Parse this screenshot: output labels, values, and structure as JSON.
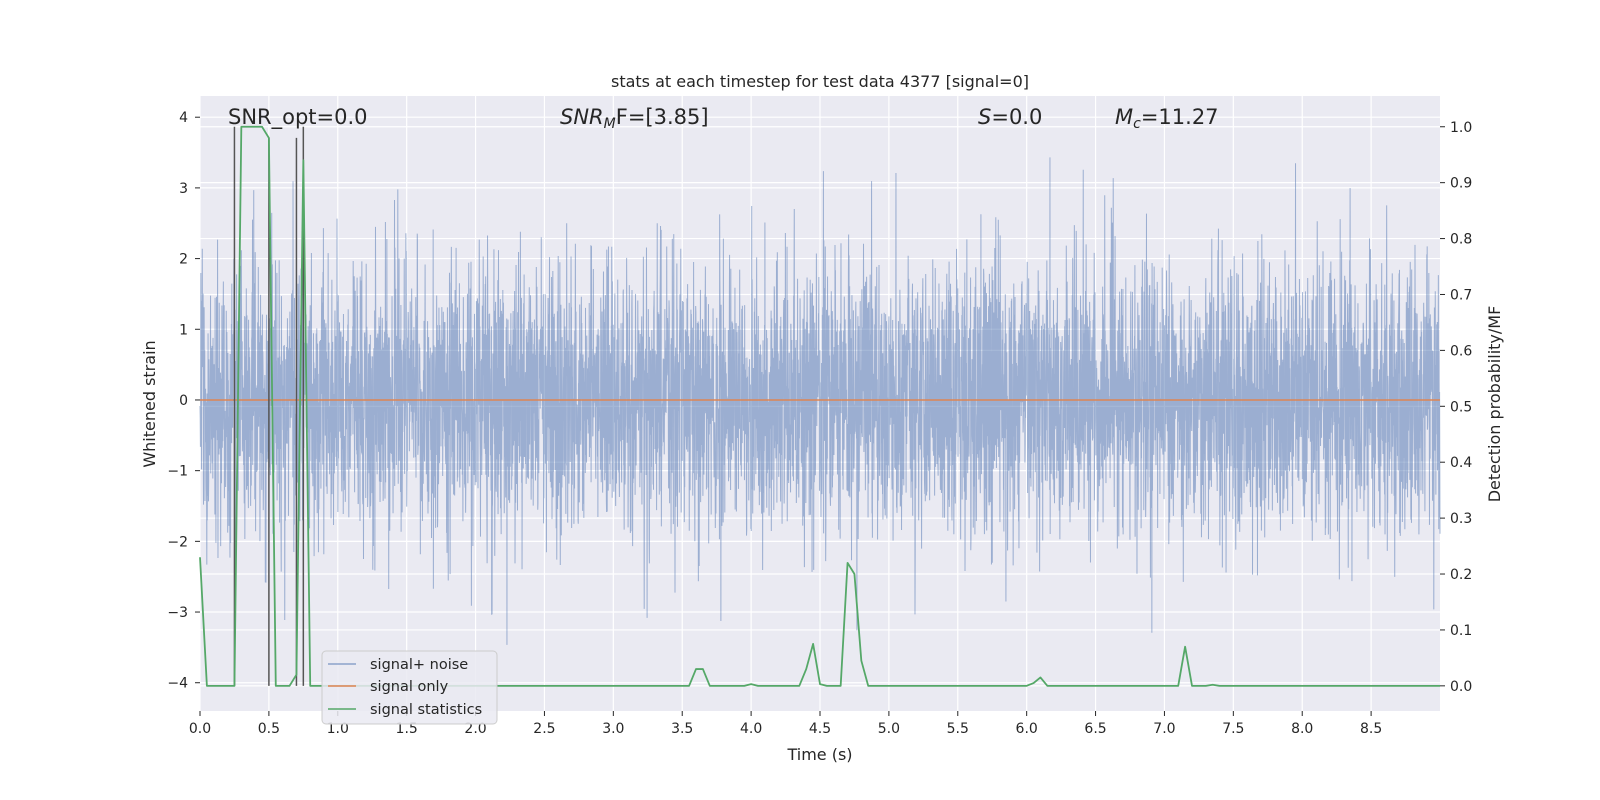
{
  "chart_data": {
    "type": "line",
    "title": "stats at each timestep for test data 4377 [signal=0]",
    "xlabel": "Time (s)",
    "ylabel": "Whitened strain",
    "ylabel_right": "Detection probability/MF",
    "xlim": [
      0.0,
      9.0
    ],
    "ylim": [
      -4.4,
      4.3
    ],
    "ylim_right": [
      -0.045,
      1.055
    ],
    "xticks": [
      0.0,
      0.5,
      1.0,
      1.5,
      2.0,
      2.5,
      3.0,
      3.5,
      4.0,
      4.5,
      5.0,
      5.5,
      6.0,
      6.5,
      7.0,
      7.5,
      8.0,
      8.5
    ],
    "xtick_labels": [
      "0.0",
      "0.5",
      "1.0",
      "1.5",
      "2.0",
      "2.5",
      "3.0",
      "3.5",
      "4.0",
      "4.5",
      "5.0",
      "5.5",
      "6.0",
      "6.5",
      "7.0",
      "7.5",
      "8.0",
      "8.5"
    ],
    "yticks": [
      -4,
      -3,
      -2,
      -1,
      0,
      1,
      2,
      3,
      4
    ],
    "ytick_labels": [
      "−4",
      "−3",
      "−2",
      "−1",
      "0",
      "1",
      "2",
      "3",
      "4"
    ],
    "yticks_right": [
      0.0,
      0.1,
      0.2,
      0.3,
      0.4,
      0.5,
      0.6,
      0.7,
      0.8,
      0.9,
      1.0
    ],
    "ytick_labels_right": [
      "0.0",
      "0.1",
      "0.2",
      "0.3",
      "0.4",
      "0.5",
      "0.6",
      "0.7",
      "0.8",
      "0.9",
      "1.0"
    ],
    "grid": true,
    "legend_position": "lower-left",
    "annotations": {
      "snr_opt": "SNR_opt=0.0",
      "snr_mf_sym": "SNR",
      "snr_mf_sub": "M",
      "snr_mf_rest": "F=[3.85]",
      "s_sym": "S",
      "s_rest": "=0.0",
      "mc_sym": "M",
      "mc_sub": "c",
      "mc_rest": "=11.27"
    },
    "series": [
      {
        "name": "signal+ noise",
        "color": "#4c72b0",
        "opacity": 0.5,
        "description": "whitened noise, dense trace approx. within [-2.5, 2.5] with spikes up to about 3.5 and down to about -4.0"
      },
      {
        "name": "signal only",
        "color": "#dd8452",
        "values_constant": 0.0
      },
      {
        "name": "signal statistics",
        "color": "#55a868",
        "axis": "right",
        "x": [
          0.0,
          0.05,
          0.1,
          0.15,
          0.2,
          0.25,
          0.3,
          0.35,
          0.4,
          0.45,
          0.5,
          0.55,
          0.6,
          0.65,
          0.7,
          0.75,
          0.8,
          0.85,
          0.9,
          0.95,
          1.0,
          1.5,
          2.0,
          2.5,
          3.0,
          3.5,
          3.55,
          3.6,
          3.65,
          3.7,
          3.75,
          3.8,
          3.85,
          3.9,
          3.95,
          4.0,
          4.05,
          4.1,
          4.15,
          4.2,
          4.25,
          4.3,
          4.35,
          4.4,
          4.45,
          4.5,
          4.55,
          4.6,
          4.65,
          4.7,
          4.75,
          4.8,
          4.85,
          4.9,
          4.95,
          5.0,
          5.5,
          5.95,
          6.0,
          6.05,
          6.1,
          6.15,
          6.2,
          6.5,
          7.0,
          7.05,
          7.1,
          7.15,
          7.2,
          7.25,
          7.3,
          7.35,
          7.4,
          7.45,
          7.5,
          8.0,
          8.5,
          9.0
        ],
        "values": [
          0.23,
          0.0,
          0.0,
          0.0,
          0.0,
          0.0,
          1.0,
          1.0,
          1.0,
          1.0,
          0.98,
          0.0,
          0.0,
          0.0,
          0.02,
          0.94,
          0.0,
          0.0,
          0.0,
          0.0,
          0.0,
          0.0,
          0.0,
          0.0,
          0.0,
          0.0,
          0.0,
          0.03,
          0.03,
          0.0,
          0.0,
          0.0,
          0.0,
          0.0,
          0.0,
          0.003,
          0.0,
          0.0,
          0.0,
          0.0,
          0.0,
          0.0,
          0.0,
          0.03,
          0.075,
          0.003,
          0.0,
          0.0,
          0.0,
          0.22,
          0.2,
          0.045,
          0.0,
          0.0,
          0.0,
          0.0,
          0.0,
          0.0,
          0.0,
          0.005,
          0.015,
          0.0,
          0.0,
          0.0,
          0.0,
          0.0,
          0.0,
          0.07,
          0.0,
          0.0,
          0.0,
          0.002,
          0.0,
          0.0,
          0.0,
          0.0,
          0.0,
          0.0
        ]
      }
    ],
    "markers": {
      "color": "#555555",
      "description": "vertical gray lines at detection peaks",
      "x": [
        0.25,
        0.5,
        0.7,
        0.75
      ],
      "y_top_right": [
        1.0,
        0.98,
        0.98,
        1.0
      ]
    }
  }
}
